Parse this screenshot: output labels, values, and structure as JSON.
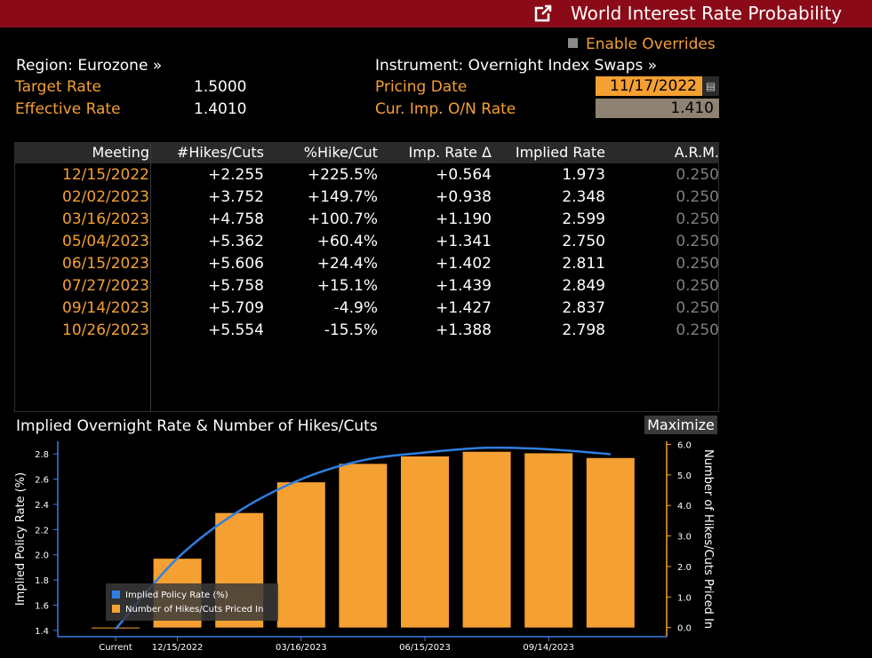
{
  "header": {
    "title": "World Interest Rate Probability",
    "external_icon": "external-link-icon"
  },
  "overrides": {
    "label": "Enable Overrides"
  },
  "region": {
    "label": "Region: Eurozone »"
  },
  "instrument": {
    "label": "Instrument: Overnight Index Swaps »"
  },
  "target_rate": {
    "label": "Target Rate",
    "value": "1.5000"
  },
  "effective_rate": {
    "label": "Effective Rate",
    "value": "1.4010"
  },
  "pricing_date": {
    "label": "Pricing Date",
    "value": "11/17/2022"
  },
  "cur_imp_rate": {
    "label": "Cur. Imp. O/N Rate",
    "value": "1.410"
  },
  "table": {
    "headers": [
      "Meeting",
      "#Hikes/Cuts",
      "%Hike/Cut",
      "Imp. Rate Δ",
      "Implied Rate",
      "A.R.M."
    ],
    "rows": [
      [
        "12/15/2022",
        "+2.255",
        "+225.5%",
        "+0.564",
        "1.973",
        "0.250"
      ],
      [
        "02/02/2023",
        "+3.752",
        "+149.7%",
        "+0.938",
        "2.348",
        "0.250"
      ],
      [
        "03/16/2023",
        "+4.758",
        "+100.7%",
        "+1.190",
        "2.599",
        "0.250"
      ],
      [
        "05/04/2023",
        "+5.362",
        "+60.4%",
        "+1.341",
        "2.750",
        "0.250"
      ],
      [
        "06/15/2023",
        "+5.606",
        "+24.4%",
        "+1.402",
        "2.811",
        "0.250"
      ],
      [
        "07/27/2023",
        "+5.758",
        "+15.1%",
        "+1.439",
        "2.849",
        "0.250"
      ],
      [
        "09/14/2023",
        "+5.709",
        "-4.9%",
        "+1.427",
        "2.837",
        "0.250"
      ],
      [
        "10/26/2023",
        "+5.554",
        "-15.5%",
        "+1.388",
        "2.798",
        "0.250"
      ]
    ]
  },
  "chart": {
    "title": "Implied Overnight Rate & Number of Hikes/Cuts",
    "maximize_label": "Maximize",
    "line_color": "#2f7fe0",
    "bar_color": "#f5a033"
  },
  "chart_data": {
    "type": "bar",
    "title": "Implied Overnight Rate & Number of Hikes/Cuts",
    "categories": [
      "Current",
      "12/15/2022",
      "02/02/2023",
      "03/16/2023",
      "05/04/2023",
      "06/15/2023",
      "07/27/2023",
      "09/14/2023",
      "10/26/2023"
    ],
    "x_tick_labels": [
      "Current",
      "12/15/2022",
      "03/16/2023",
      "06/15/2023",
      "09/14/2023"
    ],
    "series": [
      {
        "name": "Number of Hikes/Cuts Priced In",
        "axis": "right",
        "kind": "bar",
        "values": [
          0.0,
          2.255,
          3.752,
          4.758,
          5.362,
          5.606,
          5.758,
          5.709,
          5.554
        ]
      },
      {
        "name": "Implied Policy Rate (%)",
        "axis": "left",
        "kind": "line",
        "values": [
          1.41,
          1.973,
          2.348,
          2.599,
          2.75,
          2.811,
          2.849,
          2.837,
          2.798
        ]
      }
    ],
    "ylabel_left": "Implied Policy Rate (%)",
    "ylabel_right": "Number of Hikes/Cuts Priced In",
    "ylim_left": [
      1.35,
      2.9
    ],
    "ylim_right": [
      -0.3,
      6.1
    ],
    "yticks_left": [
      "1.4",
      "1.6",
      "1.8",
      "2.0",
      "2.2",
      "2.4",
      "2.6",
      "2.8"
    ],
    "yticks_right": [
      "0.0",
      "1.0",
      "2.0",
      "3.0",
      "4.0",
      "5.0",
      "6.0"
    ],
    "legend": {
      "position": "bottom-left",
      "entries": [
        "Implied Policy Rate (%)",
        "Number of Hikes/Cuts Priced In"
      ]
    }
  }
}
